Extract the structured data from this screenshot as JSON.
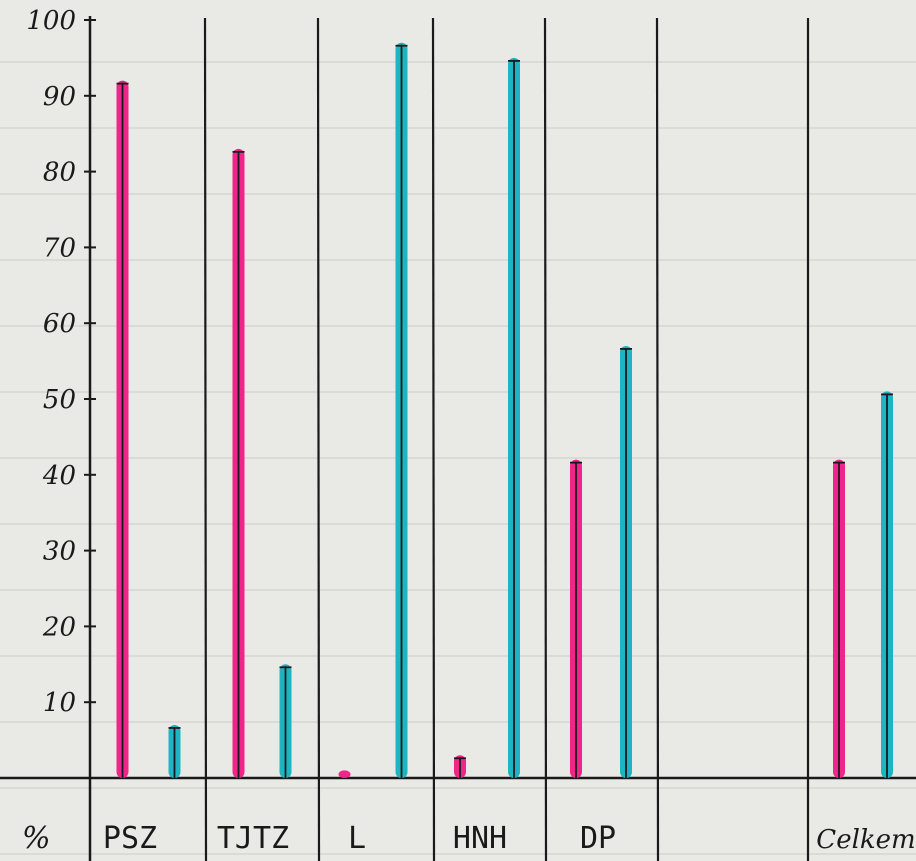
{
  "chart_data": {
    "type": "bar",
    "ylabel": "%",
    "ylim": [
      0,
      100
    ],
    "yticks": [
      10,
      20,
      30,
      40,
      50,
      60,
      70,
      80,
      90,
      100
    ],
    "categories": [
      "PSZ",
      "TJTZ",
      "L",
      "HNH",
      "DP",
      "Celkem"
    ],
    "series": [
      {
        "values": [
          92,
          83,
          1,
          3,
          42,
          42
        ]
      },
      {
        "values": [
          7,
          15,
          97,
          95,
          57,
          51
        ]
      }
    ],
    "grid": false,
    "colors": {
      "series1": "#f0258a",
      "series2": "#1fb4c4",
      "ink": "#1a1a1a"
    }
  }
}
